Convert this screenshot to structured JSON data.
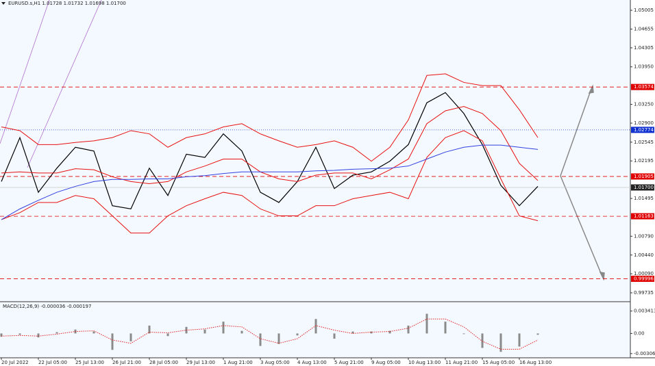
{
  "chart_data": [
    {
      "type": "line",
      "title": "EURUSD.s,H1 1.01728 1.01732 1.01698 1.01700",
      "categories": [
        "20 Jul 2022",
        null,
        "22 Jul 05:00",
        null,
        "25 Jul 13:00",
        null,
        "26 Jul 21:00",
        null,
        "28 Jul 05:00",
        null,
        "29 Jul 13:00",
        null,
        "1 Aug 21:00",
        null,
        "3 Aug 05:00",
        null,
        "4 Aug 13:00",
        null,
        "5 Aug 21:00",
        null,
        "9 Aug 05:00",
        null,
        "10 Aug 13:00",
        null,
        "11 Aug 21:00",
        null,
        "15 Aug 05:00",
        null,
        "16 Aug 13:00",
        null
      ],
      "series": [
        {
          "color": "#000000",
          "values": [
            1.0181,
            1.0263,
            1.0161,
            1.0206,
            1.0245,
            1.0238,
            1.0136,
            1.013,
            1.0206,
            1.0155,
            1.0232,
            1.0226,
            1.027,
            1.0238,
            1.0161,
            1.0142,
            1.0181,
            1.0245,
            1.0168,
            1.0193,
            1.0199,
            1.0219,
            1.025,
            1.0328,
            1.0347,
            1.0308,
            1.025,
            1.0174,
            1.0136,
            1.0172
          ]
        },
        {
          "color": "#e81010",
          "values": [
            1.0283,
            1.0276,
            1.025,
            1.025,
            1.0254,
            1.0257,
            1.0263,
            1.0276,
            1.027,
            1.0245,
            1.0263,
            1.027,
            1.0283,
            1.0289,
            1.027,
            1.0257,
            1.0245,
            1.025,
            1.0257,
            1.0245,
            1.0219,
            1.0245,
            1.0296,
            1.0379,
            1.0382,
            1.0366,
            1.036,
            1.036,
            1.0315,
            1.0263
          ]
        },
        {
          "color": "#e81010",
          "values": [
            1.0197,
            1.0199,
            1.0197,
            1.0197,
            1.0205,
            1.0203,
            1.019,
            1.0181,
            1.0177,
            1.0181,
            1.0199,
            1.021,
            1.0223,
            1.0223,
            1.0199,
            1.0186,
            1.0181,
            1.0193,
            1.0197,
            1.0197,
            1.0186,
            1.0203,
            1.0223,
            1.0289,
            1.0313,
            1.0321,
            1.0308,
            1.0276,
            1.0215,
            1.0183
          ]
        },
        {
          "color": "#e81010",
          "values": [
            1.011,
            1.0123,
            1.0142,
            1.0142,
            1.0155,
            1.0149,
            1.0117,
            1.0085,
            1.0085,
            1.0117,
            1.0136,
            1.0149,
            1.0161,
            1.0155,
            1.013,
            1.0117,
            1.0117,
            1.0136,
            1.0136,
            1.0149,
            1.0155,
            1.0161,
            1.0149,
            1.0226,
            1.0263,
            1.0276,
            1.0257,
            1.0186,
            1.0117,
            1.0108
          ]
        },
        {
          "color": "#3040e0",
          "values": [
            1.011,
            1.013,
            1.0146,
            1.0161,
            1.0172,
            1.0181,
            1.0185,
            1.0185,
            1.0186,
            1.0186,
            1.019,
            1.0192,
            1.0196,
            1.0199,
            1.0199,
            1.0199,
            1.0199,
            1.0201,
            1.0202,
            1.0204,
            1.0205,
            1.0206,
            1.021,
            1.0223,
            1.0236,
            1.0245,
            1.0249,
            1.0249,
            1.0245,
            1.0241
          ]
        }
      ],
      "ylim": [
        0.99569,
        1.05197
      ],
      "yticks": [
        1.05005,
        1.04655,
        1.04305,
        {
          "value": 1.0395,
          "label": "1.03950"
        },
        {
          "value": 1.0325,
          "label": "1.03250"
        },
        {
          "value": 1.029,
          "label": "1.02900"
        },
        1.02545,
        1.02195,
        1.01495,
        {
          "value": 1.0079,
          "label": "1.00790"
        },
        {
          "value": 1.0044,
          "label": "1.00440"
        },
        {
          "value": 1.0009,
          "label": "1.00090"
        },
        0.99735
      ],
      "levels": [
        {
          "value": 1.03574,
          "color": "#e00000",
          "style": "dash"
        },
        {
          "value": 1.02774,
          "color": "#1030d0",
          "style": "dot"
        },
        {
          "value": 1.01905,
          "color": "#e00000",
          "style": "dash"
        },
        {
          "value": 1.017,
          "label": "1.01700",
          "color": "#222222",
          "style": "solid"
        },
        {
          "value": 1.01163,
          "color": "#e00000",
          "style": "dash"
        },
        {
          "value": 0.99996,
          "color": "#e00000",
          "style": "dash"
        }
      ]
    },
    {
      "type": "bar",
      "title": "MACD(12,26,9) -0.000036 -0.000197",
      "series": [
        {
          "color": "#8a8a8a",
          "values": [
            -0.0005,
            -0.0002,
            -0.0006,
            0.0002,
            0.0006,
            0.0003,
            -0.0025,
            -0.0012,
            0.0012,
            -0.0004,
            0.001,
            0.0006,
            0.0018,
            0.0004,
            -0.0019,
            -0.0016,
            -0.0003,
            0.0022,
            -0.0008,
            0.0003,
            0.0003,
            0.0004,
            0.0012,
            0.003,
            0.0018,
            -0.0001,
            -0.0022,
            -0.0028,
            -0.002,
            -0.0002
          ]
        },
        {
          "color": "#e02020",
          "values": [
            -0.0004,
            -0.0003,
            -0.0004,
            -0.0001,
            0.0003,
            0.0004,
            -0.001,
            -0.0015,
            0.0002,
            0.0001,
            0.0005,
            0.0007,
            0.0012,
            0.001,
            -0.0008,
            -0.0015,
            -0.0008,
            0.0012,
            0.0005,
            0,
            0.0002,
            0.0003,
            0.0008,
            0.0022,
            0.0022,
            0.001,
            -0.0012,
            -0.0024,
            -0.0024,
            -0.001
          ]
        }
      ],
      "ylim": [
        -0.0035,
        0.0039
      ],
      "yticks": [
        0.003413,
        {
          "value": 0,
          "label": "0.00"
        },
        -0.003065
      ]
    }
  ]
}
